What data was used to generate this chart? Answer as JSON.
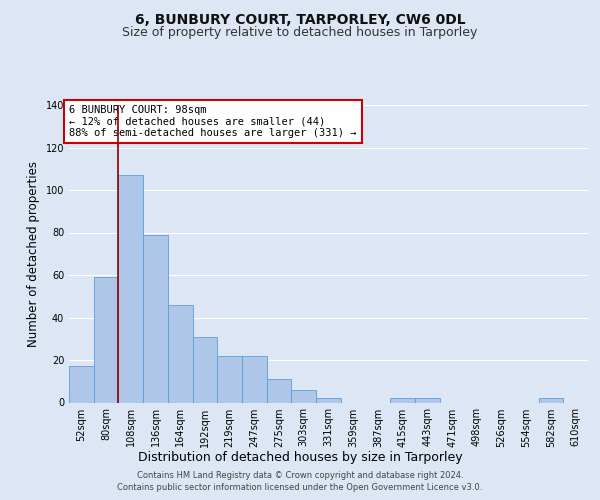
{
  "title": "6, BUNBURY COURT, TARPORLEY, CW6 0DL",
  "subtitle": "Size of property relative to detached houses in Tarporley",
  "xlabel": "Distribution of detached houses by size in Tarporley",
  "ylabel": "Number of detached properties",
  "categories": [
    "52sqm",
    "80sqm",
    "108sqm",
    "136sqm",
    "164sqm",
    "192sqm",
    "219sqm",
    "247sqm",
    "275sqm",
    "303sqm",
    "331sqm",
    "359sqm",
    "387sqm",
    "415sqm",
    "443sqm",
    "471sqm",
    "498sqm",
    "526sqm",
    "554sqm",
    "582sqm",
    "610sqm"
  ],
  "values": [
    17,
    59,
    107,
    79,
    46,
    31,
    22,
    22,
    11,
    6,
    2,
    0,
    0,
    2,
    2,
    0,
    0,
    0,
    0,
    2,
    0
  ],
  "bar_color": "#aec6e8",
  "bar_edge_color": "#5a9fd4",
  "background_color": "#dce6f5",
  "plot_bg_color": "#dce6f5",
  "grid_color": "#ffffff",
  "vline_x": 1.5,
  "vline_color": "#8b0000",
  "annotation_box_text": "6 BUNBURY COURT: 98sqm\n← 12% of detached houses are smaller (44)\n88% of semi-detached houses are larger (331) →",
  "annotation_box_edge_color": "#cc0000",
  "ylim": [
    0,
    140
  ],
  "yticks": [
    0,
    20,
    40,
    60,
    80,
    100,
    120,
    140
  ],
  "footer": "Contains HM Land Registry data © Crown copyright and database right 2024.\nContains public sector information licensed under the Open Government Licence v3.0.",
  "title_fontsize": 10,
  "subtitle_fontsize": 9,
  "ylabel_fontsize": 8.5,
  "xlabel_fontsize": 9,
  "tick_fontsize": 7,
  "annotation_fontsize": 7.5,
  "footer_fontsize": 6
}
